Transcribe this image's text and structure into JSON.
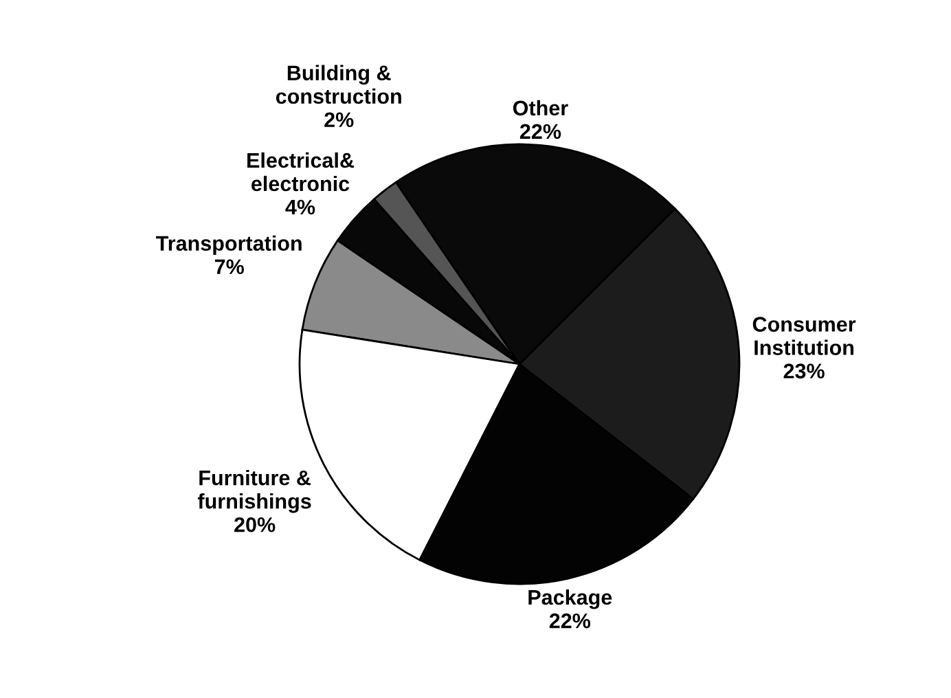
{
  "chart_data": {
    "type": "pie",
    "categories": [
      "Consumer\nInstitution",
      "Other",
      "Building &\nconstruction",
      "Electrical&\nelectronic",
      "Transportation",
      "Furniture &\nfurnishings",
      "Package"
    ],
    "values": [
      23,
      22,
      2,
      4,
      7,
      20,
      22
    ],
    "value_labels": [
      "23%",
      "22%",
      "2%",
      "4%",
      "7%",
      "20%",
      "22%"
    ],
    "colors": [
      "#1c1c1c",
      "#0a0a0a",
      "#555555",
      "#080808",
      "#8a8a8a",
      "#ffffff",
      "#030303"
    ]
  }
}
